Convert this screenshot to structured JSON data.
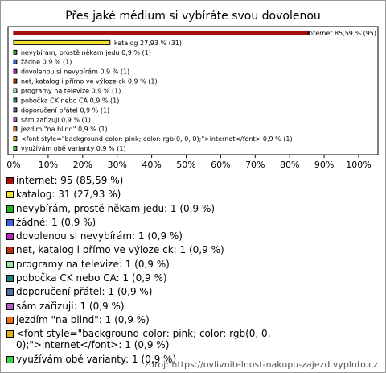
{
  "chart_data": {
    "type": "bar",
    "title": "Přes jaké médium si vybíráte svou dovolenou",
    "categories": [
      "internet",
      "katalog",
      "nevybírám, prostě někam jedu",
      "žádné",
      "dovolenou si nevybírám",
      "net, katalog i přímo ve výloze ck",
      "programy na televize",
      "pobočka CK nebo CA",
      "doporučení přátel",
      "sám zařizuji",
      "jezdím \"na blind\"",
      "<font style=\"background-color: pink; color: rgb(0, 0, 0);\">internet</font>",
      "využívám obě varianty"
    ],
    "values": [
      85.59,
      27.93,
      0.9,
      0.9,
      0.9,
      0.9,
      0.9,
      0.9,
      0.9,
      0.9,
      0.9,
      0.9,
      0.9
    ],
    "value_labels": [
      "85,59 % (95)",
      "27,93 % (31)",
      "0,9 % (1)",
      "0,9 % (1)",
      "0,9 % (1)",
      "0,9 % (1)",
      "0,9 % (1)",
      "0,9 % (1)",
      "0,9 % (1)",
      "0,9 % (1)",
      "0,9 % (1)",
      "0,9 % (1)",
      "0,9 % (1)"
    ],
    "colors": [
      "#a81010",
      "#f0e030",
      "#20b020",
      "#4060e0",
      "#c020c0",
      "#b83010",
      "#a0e0a0",
      "#208080",
      "#5070a0",
      "#b060c0",
      "#e07020",
      "#e0b020",
      "#40d040"
    ],
    "xlim": [
      0,
      100
    ],
    "xticks": [
      {
        "value": 0,
        "label": "0%"
      },
      {
        "value": 10,
        "label": "10%"
      },
      {
        "value": 20,
        "label": "20%"
      },
      {
        "value": 30,
        "label": "30%"
      },
      {
        "value": 40,
        "label": "40%"
      },
      {
        "value": 50,
        "label": "50%"
      },
      {
        "value": 60,
        "label": "60%"
      },
      {
        "value": 70,
        "label": "70%"
      },
      {
        "value": 80,
        "label": "80%"
      },
      {
        "value": 90,
        "label": "90%"
      },
      {
        "value": 100,
        "label": "100%"
      }
    ],
    "legend": [
      "internet: 95 (85,59 %)",
      "katalog: 31 (27,93 %)",
      "nevybírám, prostě někam jedu: 1 (0,9 %)",
      "žádné: 1 (0,9 %)",
      "dovolenou si nevybírám: 1 (0,9 %)",
      "net, katalog i přímo ve výloze ck: 1 (0,9 %)",
      "programy na televize: 1 (0,9 %)",
      "pobočka CK nebo CA: 1 (0,9 %)",
      "doporučení přátel: 1 (0,9 %)",
      "sám zařizuji: 1 (0,9 %)",
      "jezdím \"na blind\": 1 (0,9 %)",
      "<font style=\"background-color: pink; color: rgb(0, 0, 0);\">internet</font>: 1 (0,9 %)",
      "využívám obě varianty: 1 (0,9 %)"
    ],
    "source": "zdroj: https://ovlivnitelnost-nakupu-zajezd.vyplnto.cz"
  }
}
